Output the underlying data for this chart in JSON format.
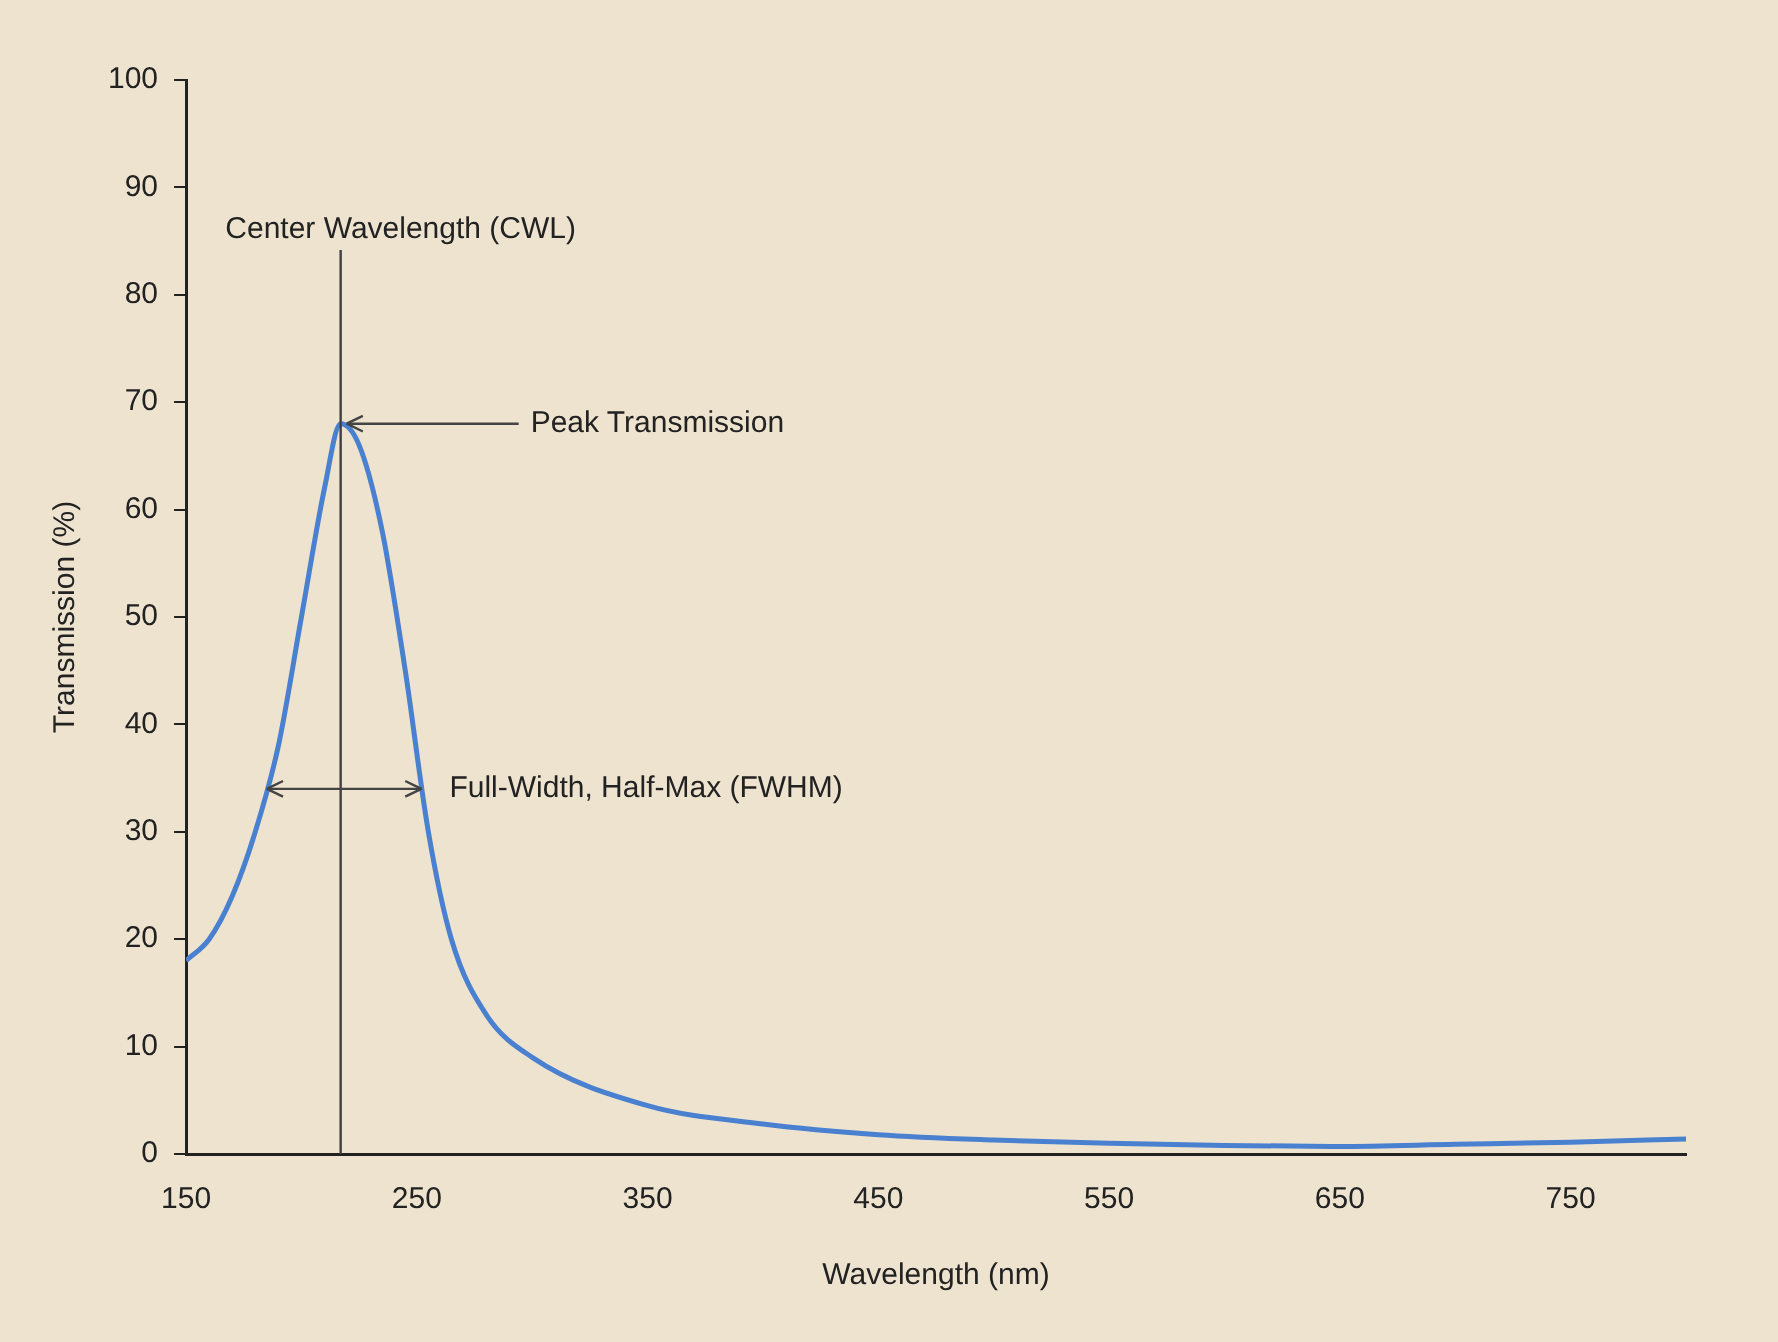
{
  "chart_data": {
    "type": "line",
    "xlabel": "Wavelength (nm)",
    "ylabel": "Transmission (%)",
    "x": [
      150,
      160,
      170,
      180,
      190,
      200,
      210,
      217,
      225,
      235,
      245,
      255,
      265,
      280,
      300,
      350,
      400,
      450,
      500,
      550,
      600,
      650,
      700,
      750,
      800
    ],
    "series": [
      {
        "color": "#4a80d0",
        "values": [
          18,
          20,
          24,
          30,
          38,
          50,
          62,
          68,
          66,
          58,
          45,
          30,
          20,
          13,
          9,
          4.5,
          2.8,
          1.8,
          1.3,
          1.0,
          0.8,
          0.7,
          0.9,
          1.1,
          1.4
        ]
      }
    ],
    "xlim": [
      150,
      800
    ],
    "xticks": [
      150,
      250,
      350,
      450,
      550,
      650,
      750
    ],
    "ylim": [
      0,
      100
    ],
    "yticks": [
      0,
      10,
      20,
      30,
      40,
      50,
      60,
      70,
      80,
      90,
      100
    ],
    "grid": false,
    "legend": false,
    "marker": "none",
    "line_style": "solid",
    "ref_lines": [
      {
        "axis": "x",
        "value": 217,
        "label": "Center Wavelength (CWL)",
        "color": "#404040"
      }
    ],
    "annotations": [
      {
        "text": "Peak Transmission",
        "x": 217,
        "y": 68
      },
      {
        "text": "Full-Width, Half-Max (FWHM)",
        "x": 252,
        "y": 34
      }
    ]
  }
}
